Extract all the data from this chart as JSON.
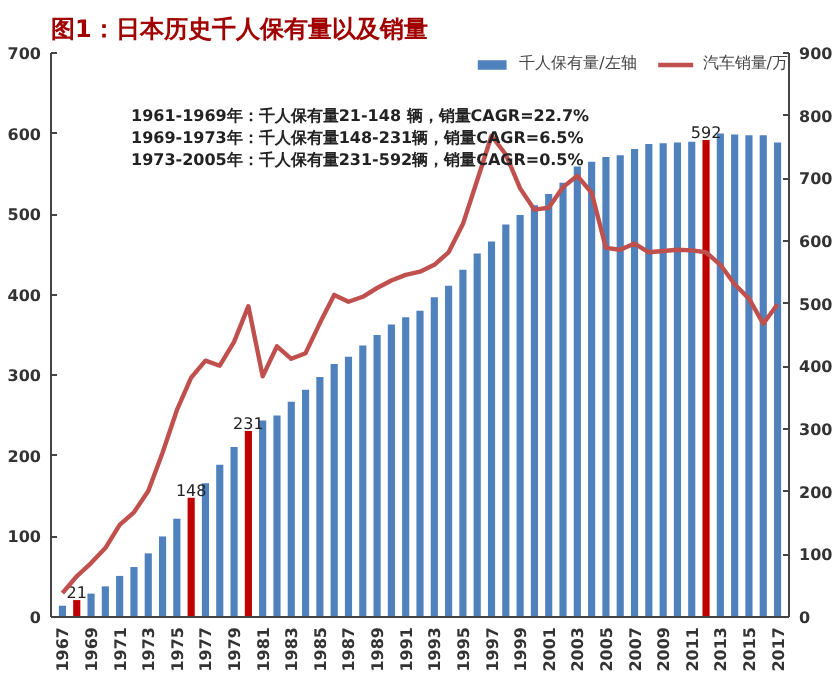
{
  "chart_data": {
    "type": "bar",
    "title": "图1：日本历史千人保有量以及销量",
    "categories": [
      "1967",
      null,
      "1969",
      null,
      "1971",
      null,
      "1973",
      null,
      "1975",
      null,
      "1977",
      null,
      "1979",
      null,
      "1981",
      null,
      "1983",
      null,
      "1985",
      null,
      "1987",
      null,
      "1989",
      null,
      "1991",
      null,
      "1993",
      null,
      "1995",
      null,
      "1997",
      null,
      "1999",
      null,
      "2001",
      null,
      "2003",
      null,
      "2005",
      null,
      "2007",
      null,
      "2009",
      null,
      "2011",
      null,
      "2013",
      null,
      "2015",
      null,
      "2017"
    ],
    "series": [
      {
        "name": "千人保有量/左轴",
        "color": "#4f81bd",
        "colors": [
          "#4f81bd",
          "#c00000",
          "#4f81bd",
          "#4f81bd",
          "#4f81bd",
          "#4f81bd",
          "#4f81bd",
          "#4f81bd",
          "#4f81bd",
          "#c00000",
          "#4f81bd",
          "#4f81bd",
          "#4f81bd",
          "#c00000",
          "#4f81bd",
          "#4f81bd",
          "#4f81bd",
          "#4f81bd",
          "#4f81bd",
          "#4f81bd",
          "#4f81bd",
          "#4f81bd",
          "#4f81bd",
          "#4f81bd",
          "#4f81bd",
          "#4f81bd",
          "#4f81bd",
          "#4f81bd",
          "#4f81bd",
          "#4f81bd",
          "#4f81bd",
          "#4f81bd",
          "#4f81bd",
          "#4f81bd",
          "#4f81bd",
          "#4f81bd",
          "#4f81bd",
          "#4f81bd",
          "#4f81bd",
          "#4f81bd",
          "#4f81bd",
          "#4f81bd",
          "#4f81bd",
          "#4f81bd",
          "#4f81bd",
          "#c00000",
          "#4f81bd",
          "#4f81bd",
          "#4f81bd",
          "#4f81bd",
          "#4f81bd"
        ],
        "values": [
          14,
          21,
          29,
          38,
          51,
          62,
          79,
          100,
          122,
          148,
          166,
          189,
          211,
          231,
          244,
          250,
          267,
          282,
          298,
          314,
          323,
          337,
          350,
          363,
          372,
          380,
          397,
          411,
          431,
          451,
          466,
          487,
          499,
          511,
          525,
          539,
          559,
          565,
          571,
          573,
          581,
          587,
          588,
          589,
          590,
          592,
          600,
          599,
          598,
          598,
          589
        ],
        "value_labels": [
          null,
          "21",
          null,
          null,
          null,
          null,
          null,
          null,
          null,
          "148",
          null,
          null,
          null,
          "231",
          null,
          null,
          null,
          null,
          null,
          null,
          null,
          null,
          null,
          null,
          null,
          null,
          null,
          null,
          null,
          null,
          null,
          null,
          null,
          null,
          null,
          null,
          null,
          null,
          null,
          null,
          null,
          null,
          null,
          null,
          null,
          "592",
          null,
          null,
          null,
          null,
          null
        ]
      },
      {
        "name": "汽车销量/万",
        "type": "line",
        "axis": "y2",
        "color": "#c0504d",
        "values": [
          38,
          65,
          86,
          110,
          147,
          167,
          201,
          262,
          330,
          382,
          409,
          401,
          439,
          496,
          384,
          432,
          412,
          421,
          469,
          514,
          503,
          511,
          525,
          537,
          546,
          551,
          562,
          582,
          627,
          697,
          768,
          738,
          684,
          650,
          653,
          686,
          704,
          677,
          589,
          586,
          596,
          582,
          584,
          586,
          585,
          582,
          562,
          531,
          508,
          468,
          499
        ]
      }
    ],
    "ylim": [
      0,
      700
    ],
    "yticks": [
      0,
      100,
      200,
      300,
      400,
      500,
      600,
      700
    ],
    "y2lim": [
      0,
      900
    ],
    "y2ticks": [
      0,
      100,
      200,
      300,
      400,
      500,
      600,
      700,
      800,
      900
    ],
    "legend": "top",
    "grid": false,
    "annotations": [
      "1961-1969年：千人保有量21-148 辆，销量CAGR=22.7%",
      "1969-1973年：千人保有量148-231辆，销量CAGR=6.5%",
      "1973-2005年：千人保有量231-592辆，销量CAGR=0.5%"
    ]
  }
}
